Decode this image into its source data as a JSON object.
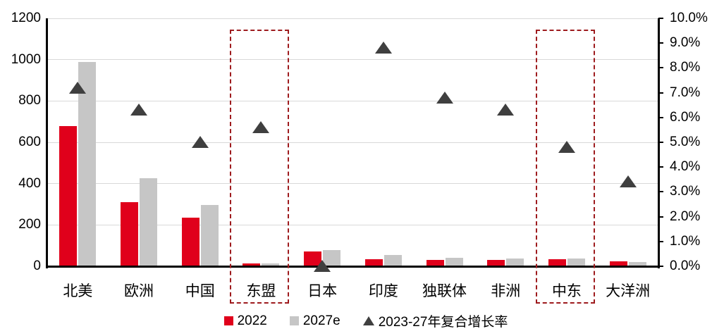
{
  "chart_data": {
    "type": "bar",
    "subtype": "dual-axis-bar-with-scatter-markers",
    "title": "",
    "categories": [
      "北美",
      "欧洲",
      "中国",
      "东盟",
      "日本",
      "印度",
      "独联体",
      "非洲",
      "中东",
      "大洋洲"
    ],
    "series": [
      {
        "name": "2022",
        "type": "bar",
        "axis": "left",
        "color": "#e0001b",
        "values": [
          680,
          310,
          235,
          15,
          70,
          35,
          32,
          30,
          33,
          25
        ]
      },
      {
        "name": "2027e",
        "type": "bar",
        "axis": "left",
        "color": "#c6c6c6",
        "values": [
          990,
          425,
          295,
          12,
          78,
          55,
          42,
          38,
          36,
          22
        ]
      },
      {
        "name": "2023-27年复合增长率",
        "type": "scatter",
        "marker": "triangle",
        "axis": "right",
        "color": "#3f3f3f",
        "values": [
          7.2,
          6.3,
          5.0,
          5.6,
          0.0,
          8.8,
          6.8,
          6.3,
          4.8,
          3.4
        ]
      }
    ],
    "left_axis": {
      "min": 0,
      "max": 1200,
      "step": 200,
      "tick_labels": [
        "1200",
        "1000",
        "800",
        "600",
        "400",
        "200",
        "0"
      ]
    },
    "right_axis": {
      "min": 0,
      "max": 10,
      "step": 1,
      "tick_labels": [
        "10.0%",
        "9.0%",
        "8.0%",
        "7.0%",
        "6.0%",
        "5.0%",
        "4.0%",
        "3.0%",
        "2.0%",
        "1.0%",
        "0.0%"
      ]
    },
    "grid": "horizontal",
    "gridline_color": "#d9d9d9",
    "highlighted_categories": [
      "东盟",
      "中东"
    ],
    "highlight_box_color": "#9e1b1e",
    "legend": [
      {
        "label": "2022",
        "swatch": "square",
        "color": "#e0001b"
      },
      {
        "label": "2027e",
        "swatch": "square",
        "color": "#c6c6c6"
      },
      {
        "label": "2023-27年复合增长率",
        "swatch": "triangle",
        "color": "#3f3f3f"
      }
    ],
    "legend_position": "bottom-center"
  }
}
